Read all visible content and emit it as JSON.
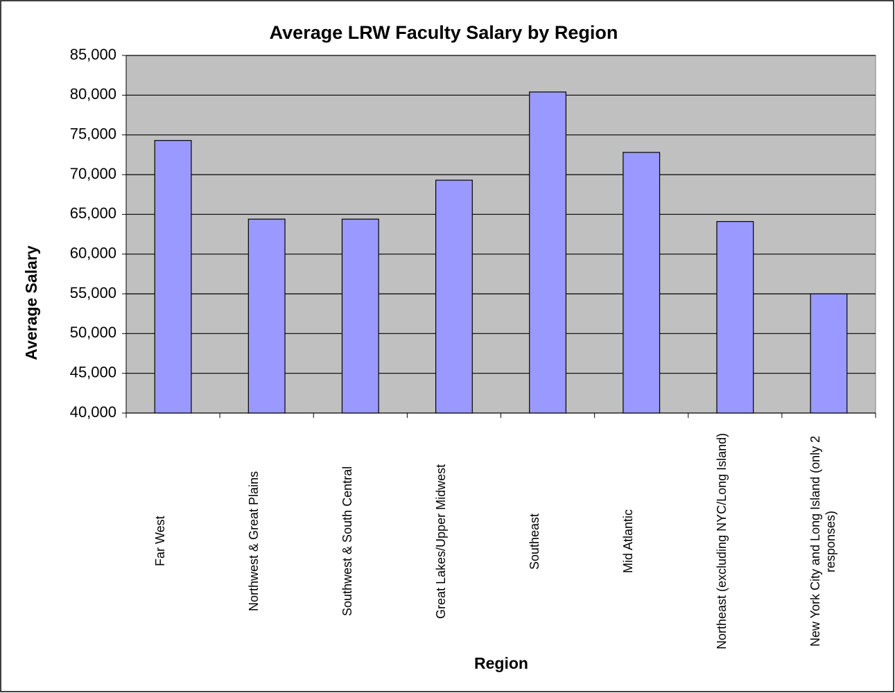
{
  "chart_data": {
    "type": "bar",
    "title": "Average LRW Faculty Salary by Region",
    "x_label": "Region",
    "y_label": "Average Salary",
    "categories": [
      "Far West",
      "Northwest & Great Plains",
      "Southwest & South Central",
      "Great Lakes/Upper Midwest",
      "Southeast",
      "Mid Atlantic",
      "Northeast (excluding NYC/Long Island)",
      "New York City and Long Island (only 2 responses)"
    ],
    "values": [
      74300,
      64400,
      64400,
      69300,
      80400,
      72800,
      64100,
      55000
    ],
    "color": "#9999ff",
    "ylim": [
      40000,
      85000
    ],
    "yticks": [
      {
        "value": 40000,
        "label": "40,000"
      },
      {
        "value": 45000,
        "label": "45,000"
      },
      {
        "value": 50000,
        "label": "50,000"
      },
      {
        "value": 55000,
        "label": "55,000"
      },
      {
        "value": 60000,
        "label": "60,000"
      },
      {
        "value": 65000,
        "label": "65,000"
      },
      {
        "value": 70000,
        "label": "70,000"
      },
      {
        "value": 75000,
        "label": "75,000"
      },
      {
        "value": 80000,
        "label": "80,000"
      },
      {
        "value": 85000,
        "label": "85,000"
      }
    ],
    "grid": true
  }
}
